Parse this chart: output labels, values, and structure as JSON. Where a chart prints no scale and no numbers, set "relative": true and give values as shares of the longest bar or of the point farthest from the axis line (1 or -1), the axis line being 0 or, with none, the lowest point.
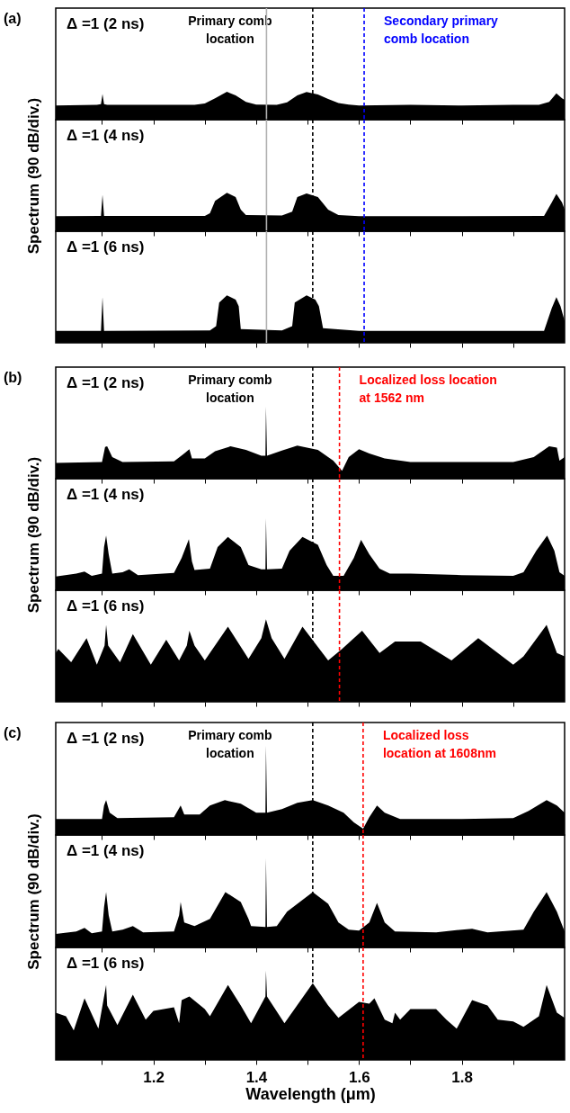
{
  "chart_data": [
    {
      "type": "area",
      "relative": true,
      "color": "#000000",
      "x": [
        1.01,
        1.09,
        1.098,
        1.101,
        1.104,
        1.11,
        1.2,
        1.28,
        1.3,
        1.32,
        1.343,
        1.36,
        1.38,
        1.4,
        1.44,
        1.46,
        1.48,
        1.498,
        1.52,
        1.54,
        1.56,
        1.58,
        1.6,
        1.7,
        1.8,
        1.9,
        1.95,
        1.97,
        1.984,
        1.995,
        2.0
      ],
      "values": [
        0.51,
        0.53,
        0.56,
        0.92,
        0.56,
        0.53,
        0.53,
        0.53,
        0.58,
        0.77,
        1,
        0.87,
        0.64,
        0.54,
        0.53,
        0.62,
        0.87,
        0.99,
        0.9,
        0.74,
        0.6,
        0.54,
        0.51,
        0.53,
        0.51,
        0.53,
        0.53,
        0.64,
        0.94,
        0.77,
        0.71
      ],
      "xlim": [
        1.01,
        2.0
      ],
      "xticks": [
        {
          "value": 1.1,
          "label": null
        },
        1.2,
        {
          "value": 1.3,
          "label": null
        },
        1.4,
        {
          "value": 1.5,
          "label": null
        },
        1.6,
        {
          "value": 1.7,
          "label": null
        },
        1.8,
        {
          "value": 1.9,
          "label": null
        }
      ],
      "tick_labels": false,
      "annotations": [
        "(a)",
        "Δ =1 (2 ns)"
      ],
      "ref_lines": [
        {
          "axis": "x",
          "value": 1.51,
          "label": "Primary comb location",
          "color": "#000000",
          "line_style": "dashed"
        },
        {
          "axis": "x",
          "value": 1.61,
          "label": "Secondary primary comb location",
          "color": "#0000ff",
          "line_style": "dashed"
        },
        {
          "axis": "x",
          "value": 1.42,
          "color": "#b0b0b0",
          "line_style": "solid"
        }
      ]
    },
    {
      "type": "area",
      "relative": true,
      "color": "#000000",
      "x": [
        1.01,
        1.098,
        1.101,
        1.104,
        1.3,
        1.31,
        1.32,
        1.343,
        1.36,
        1.37,
        1.38,
        1.45,
        1.47,
        1.48,
        1.498,
        1.52,
        1.54,
        1.56,
        1.6,
        1.8,
        1.96,
        1.975,
        1.984,
        1.995,
        2.0
      ],
      "values": [
        0.39,
        0.4,
        0.95,
        0.4,
        0.4,
        0.47,
        0.79,
        1,
        0.89,
        0.56,
        0.42,
        0.41,
        0.51,
        0.89,
        0.98,
        0.89,
        0.56,
        0.42,
        0.39,
        0.39,
        0.4,
        0.75,
        0.97,
        0.75,
        0.56
      ],
      "xlim": [
        1.01,
        2.0
      ],
      "xticks": [
        {
          "value": 1.1,
          "label": null
        },
        1.2,
        {
          "value": 1.3,
          "label": null
        },
        1.4,
        {
          "value": 1.5,
          "label": null
        },
        1.6,
        {
          "value": 1.7,
          "label": null
        },
        1.8,
        {
          "value": 1.9,
          "label": null
        }
      ],
      "tick_labels": false,
      "ylabel": "Spectrum (90 dB/div.)",
      "annotations": [
        "Δ =1 (4 ns)"
      ],
      "ref_lines": [
        {
          "axis": "x",
          "value": 1.51,
          "color": "#000000",
          "line_style": "dashed"
        },
        {
          "axis": "x",
          "value": 1.61,
          "color": "#0000ff",
          "line_style": "dashed"
        },
        {
          "axis": "x",
          "value": 1.42,
          "color": "#b0b0b0",
          "line_style": "solid"
        }
      ]
    },
    {
      "type": "area",
      "relative": true,
      "color": "#000000",
      "x": [
        1.01,
        1.098,
        1.101,
        1.104,
        1.31,
        1.322,
        1.328,
        1.343,
        1.36,
        1.366,
        1.37,
        1.45,
        1.47,
        1.475,
        1.498,
        1.515,
        1.522,
        1.53,
        1.6,
        1.96,
        1.975,
        1.984,
        1.992,
        2.0
      ],
      "values": [
        0.25,
        0.25,
        0.96,
        0.25,
        0.26,
        0.35,
        0.85,
        1,
        0.91,
        0.77,
        0.29,
        0.26,
        0.35,
        0.85,
        1,
        0.91,
        0.77,
        0.31,
        0.25,
        0.25,
        0.73,
        0.96,
        0.77,
        0.46
      ],
      "xlim": [
        1.01,
        2.0
      ],
      "xticks": [
        {
          "value": 1.1,
          "label": null
        },
        1.2,
        {
          "value": 1.3,
          "label": null
        },
        1.4,
        {
          "value": 1.5,
          "label": null
        },
        1.6,
        {
          "value": 1.7,
          "label": null
        },
        1.8,
        {
          "value": 1.9,
          "label": null
        }
      ],
      "tick_labels": false,
      "annotations": [
        "Δ =1 (6 ns)"
      ],
      "ref_lines": [
        {
          "axis": "x",
          "value": 1.51,
          "color": "#000000",
          "line_style": "dashed"
        },
        {
          "axis": "x",
          "value": 1.61,
          "color": "#0000ff",
          "line_style": "dashed"
        },
        {
          "axis": "x",
          "value": 1.42,
          "color": "#b0b0b0",
          "line_style": "solid"
        }
      ]
    },
    {
      "type": "area",
      "relative": true,
      "color": "#000000",
      "x": [
        1.01,
        1.1,
        1.106,
        1.11,
        1.12,
        1.14,
        1.24,
        1.26,
        1.27,
        1.275,
        1.3,
        1.32,
        1.35,
        1.38,
        1.41,
        1.418,
        1.419,
        1.421,
        1.45,
        1.48,
        1.52,
        1.55,
        1.567,
        1.58,
        1.6,
        1.62,
        1.65,
        1.7,
        1.8,
        1.9,
        1.94,
        1.97,
        1.985,
        1.99,
        2.0
      ],
      "values": [
        0.22,
        0.23,
        0.44,
        0.45,
        0.3,
        0.23,
        0.24,
        0.35,
        0.41,
        0.28,
        0.28,
        0.38,
        0.45,
        0.4,
        0.32,
        0.32,
        1,
        0.32,
        0.39,
        0.46,
        0.4,
        0.25,
        0.11,
        0.3,
        0.41,
        0.35,
        0.28,
        0.23,
        0.23,
        0.23,
        0.3,
        0.45,
        0.43,
        0.25,
        0.3
      ],
      "xlim": [
        1.01,
        2.0
      ],
      "xticks": [
        {
          "value": 1.1,
          "label": null
        },
        1.2,
        {
          "value": 1.3,
          "label": null
        },
        1.4,
        {
          "value": 1.5,
          "label": null
        },
        1.6,
        {
          "value": 1.7,
          "label": null
        },
        1.8,
        {
          "value": 1.9,
          "label": null
        }
      ],
      "tick_labels": false,
      "annotations": [
        "(b)",
        "Δ =1 (2 ns)"
      ],
      "ref_lines": [
        {
          "axis": "x",
          "value": 1.51,
          "label": "Primary comb location",
          "color": "#000000",
          "line_style": "dashed"
        },
        {
          "axis": "x",
          "value": 1.562,
          "label": "Localized loss location at 1562 nm",
          "color": "#ff0000",
          "line_style": "dashed"
        }
      ]
    },
    {
      "type": "area",
      "relative": true,
      "color": "#000000",
      "x": [
        1.01,
        1.05,
        1.066,
        1.08,
        1.1,
        1.104,
        1.108,
        1.113,
        1.12,
        1.14,
        1.153,
        1.17,
        1.24,
        1.255,
        1.269,
        1.275,
        1.28,
        1.31,
        1.325,
        1.345,
        1.37,
        1.385,
        1.41,
        1.418,
        1.419,
        1.421,
        1.45,
        1.465,
        1.49,
        1.52,
        1.537,
        1.55,
        1.57,
        1.59,
        1.604,
        1.62,
        1.64,
        1.66,
        1.7,
        1.8,
        1.9,
        1.92,
        1.945,
        1.966,
        1.98,
        1.99,
        2.0
      ],
      "values": [
        0.19,
        0.23,
        0.26,
        0.2,
        0.23,
        0.6,
        0.76,
        0.5,
        0.23,
        0.25,
        0.29,
        0.21,
        0.24,
        0.45,
        0.71,
        0.4,
        0.28,
        0.3,
        0.6,
        0.74,
        0.6,
        0.35,
        0.29,
        0.29,
        1,
        0.29,
        0.3,
        0.55,
        0.74,
        0.63,
        0.35,
        0.2,
        0.2,
        0.45,
        0.7,
        0.5,
        0.3,
        0.23,
        0.23,
        0.21,
        0.2,
        0.25,
        0.55,
        0.76,
        0.55,
        0.25,
        0.2
      ],
      "xlim": [
        1.01,
        2.0
      ],
      "xticks": [
        {
          "value": 1.1,
          "label": null
        },
        1.2,
        {
          "value": 1.3,
          "label": null
        },
        1.4,
        {
          "value": 1.5,
          "label": null
        },
        1.6,
        {
          "value": 1.7,
          "label": null
        },
        1.8,
        {
          "value": 1.9,
          "label": null
        }
      ],
      "tick_labels": false,
      "ylabel": "Spectrum (90 dB/div.)",
      "annotations": [
        "Δ =1 (4 ns)"
      ],
      "ref_lines": [
        {
          "axis": "x",
          "value": 1.51,
          "color": "#000000",
          "line_style": "dashed"
        },
        {
          "axis": "x",
          "value": 1.562,
          "color": "#ff0000",
          "line_style": "dashed"
        }
      ]
    },
    {
      "type": "area",
      "relative": true,
      "color": "#000000",
      "x": [
        1.01,
        1.015,
        1.04,
        1.07,
        1.09,
        1.105,
        1.108,
        1.112,
        1.135,
        1.16,
        1.195,
        1.225,
        1.25,
        1.265,
        1.27,
        1.28,
        1.3,
        1.345,
        1.385,
        1.41,
        1.419,
        1.43,
        1.455,
        1.49,
        1.54,
        1.567,
        1.606,
        1.64,
        1.67,
        1.72,
        1.78,
        1.832,
        1.9,
        1.92,
        1.965,
        1.985,
        2.0
      ],
      "values": [
        0.59,
        0.64,
        0.48,
        0.77,
        0.45,
        0.68,
        0.93,
        0.68,
        0.48,
        0.82,
        0.45,
        0.75,
        0.5,
        0.68,
        0.86,
        0.68,
        0.5,
        0.91,
        0.52,
        0.77,
        1,
        0.77,
        0.52,
        0.91,
        0.5,
        0.64,
        0.86,
        0.59,
        0.73,
        0.73,
        0.5,
        0.77,
        0.45,
        0.55,
        0.93,
        0.59,
        0.55
      ],
      "xlim": [
        1.01,
        2.0
      ],
      "xticks": [
        {
          "value": 1.1,
          "label": null
        },
        1.2,
        {
          "value": 1.3,
          "label": null
        },
        1.4,
        {
          "value": 1.5,
          "label": null
        },
        1.6,
        {
          "value": 1.7,
          "label": null
        },
        1.8,
        {
          "value": 1.9,
          "label": null
        }
      ],
      "tick_labels": false,
      "annotations": [
        "Δ =1 (6 ns)"
      ],
      "ref_lines": [
        {
          "axis": "x",
          "value": 1.51,
          "color": "#000000",
          "line_style": "dashed"
        },
        {
          "axis": "x",
          "value": 1.562,
          "color": "#ff0000",
          "line_style": "dashed"
        }
      ]
    },
    {
      "type": "area",
      "relative": true,
      "color": "#000000",
      "x": [
        1.01,
        1.1,
        1.104,
        1.108,
        1.115,
        1.13,
        1.24,
        1.253,
        1.26,
        1.29,
        1.31,
        1.339,
        1.37,
        1.4,
        1.418,
        1.419,
        1.421,
        1.45,
        1.48,
        1.51,
        1.54,
        1.57,
        1.59,
        1.608,
        1.62,
        1.635,
        1.65,
        1.68,
        1.8,
        1.9,
        1.93,
        1.965,
        1.985,
        2.0
      ],
      "values": [
        0.18,
        0.18,
        0.33,
        0.39,
        0.25,
        0.19,
        0.2,
        0.33,
        0.23,
        0.23,
        0.33,
        0.39,
        0.35,
        0.25,
        0.25,
        1,
        0.25,
        0.29,
        0.36,
        0.39,
        0.33,
        0.25,
        0.14,
        0.07,
        0.2,
        0.33,
        0.25,
        0.18,
        0.18,
        0.19,
        0.27,
        0.39,
        0.33,
        0.25
      ],
      "xlim": [
        1.01,
        2.0
      ],
      "xticks": [
        {
          "value": 1.1,
          "label": null
        },
        1.2,
        {
          "value": 1.3,
          "label": null
        },
        1.4,
        {
          "value": 1.5,
          "label": null
        },
        1.6,
        {
          "value": 1.7,
          "label": null
        },
        1.8,
        {
          "value": 1.9,
          "label": null
        }
      ],
      "tick_labels": false,
      "annotations": [
        "(c)",
        "Δ =1 (2 ns)"
      ],
      "ref_lines": [
        {
          "axis": "x",
          "value": 1.51,
          "label": "Primary comb location",
          "color": "#000000",
          "line_style": "dashed"
        },
        {
          "axis": "x",
          "value": 1.608,
          "label": "Localized loss location at 1608nm",
          "color": "#ff0000",
          "line_style": "dashed"
        }
      ]
    },
    {
      "type": "area",
      "relative": true,
      "color": "#000000",
      "x": [
        1.01,
        1.05,
        1.066,
        1.08,
        1.1,
        1.104,
        1.108,
        1.113,
        1.12,
        1.14,
        1.16,
        1.18,
        1.24,
        1.25,
        1.253,
        1.26,
        1.28,
        1.31,
        1.34,
        1.37,
        1.385,
        1.39,
        1.418,
        1.419,
        1.421,
        1.44,
        1.46,
        1.51,
        1.54,
        1.56,
        1.58,
        1.6,
        1.62,
        1.635,
        1.65,
        1.67,
        1.75,
        1.8,
        1.82,
        1.85,
        1.92,
        1.94,
        1.965,
        1.985,
        2.0
      ],
      "values": [
        0.15,
        0.18,
        0.22,
        0.16,
        0.18,
        0.45,
        0.62,
        0.36,
        0.18,
        0.2,
        0.24,
        0.17,
        0.18,
        0.36,
        0.51,
        0.28,
        0.24,
        0.32,
        0.62,
        0.51,
        0.32,
        0.24,
        0.23,
        1,
        0.23,
        0.24,
        0.4,
        0.62,
        0.49,
        0.28,
        0.2,
        0.19,
        0.28,
        0.5,
        0.28,
        0.18,
        0.17,
        0.2,
        0.21,
        0.17,
        0.2,
        0.4,
        0.62,
        0.4,
        0.18
      ],
      "xlim": [
        1.01,
        2.0
      ],
      "xticks": [
        {
          "value": 1.1,
          "label": null
        },
        1.2,
        {
          "value": 1.3,
          "label": null
        },
        1.4,
        {
          "value": 1.5,
          "label": null
        },
        1.6,
        {
          "value": 1.7,
          "label": null
        },
        1.8,
        {
          "value": 1.9,
          "label": null
        }
      ],
      "tick_labels": false,
      "ylabel": "Spectrum (90 dB/div.)",
      "annotations": [
        "Δ =1 (4 ns)"
      ],
      "ref_lines": [
        {
          "axis": "x",
          "value": 1.51,
          "color": "#000000",
          "line_style": "dashed"
        },
        {
          "axis": "x",
          "value": 1.608,
          "color": "#ff0000",
          "line_style": "dashed"
        }
      ]
    },
    {
      "type": "area",
      "relative": true,
      "color": "#000000",
      "x": [
        1.01,
        1.03,
        1.045,
        1.066,
        1.085,
        1.093,
        1.108,
        1.11,
        1.13,
        1.16,
        1.185,
        1.2,
        1.24,
        1.25,
        1.255,
        1.27,
        1.3,
        1.31,
        1.345,
        1.37,
        1.39,
        1.418,
        1.419,
        1.421,
        1.455,
        1.51,
        1.54,
        1.56,
        1.6,
        1.62,
        1.63,
        1.65,
        1.665,
        1.67,
        1.68,
        1.7,
        1.75,
        1.77,
        1.79,
        1.82,
        1.85,
        1.87,
        1.9,
        1.92,
        1.95,
        1.965,
        1.985,
        2.0
      ],
      "values": [
        0.53,
        0.49,
        0.33,
        0.69,
        0.45,
        0.35,
        0.84,
        0.61,
        0.39,
        0.73,
        0.45,
        0.55,
        0.59,
        0.41,
        0.67,
        0.71,
        0.57,
        0.49,
        0.84,
        0.61,
        0.41,
        0.71,
        1,
        0.71,
        0.41,
        0.86,
        0.61,
        0.47,
        0.65,
        0.63,
        0.69,
        0.45,
        0.41,
        0.53,
        0.45,
        0.57,
        0.57,
        0.45,
        0.35,
        0.67,
        0.61,
        0.45,
        0.43,
        0.37,
        0.49,
        0.84,
        0.53,
        0.47
      ],
      "xlim": [
        1.01,
        2.0
      ],
      "xticks": [
        {
          "value": 1.1,
          "label": null
        },
        1.2,
        {
          "value": 1.3,
          "label": null
        },
        1.4,
        {
          "value": 1.5,
          "label": null
        },
        1.6,
        {
          "value": 1.7,
          "label": null
        },
        1.8,
        {
          "value": 1.9,
          "label": null
        }
      ],
      "tick_labels": "x",
      "xlabel": "Wavelength (μm)",
      "annotations": [
        "Δ =1 (6 ns)"
      ],
      "ref_lines": [
        {
          "axis": "x",
          "value": 1.51,
          "color": "#000000",
          "line_style": "dashed"
        },
        {
          "axis": "x",
          "value": 1.608,
          "color": "#ff0000",
          "line_style": "dashed"
        }
      ]
    }
  ]
}
